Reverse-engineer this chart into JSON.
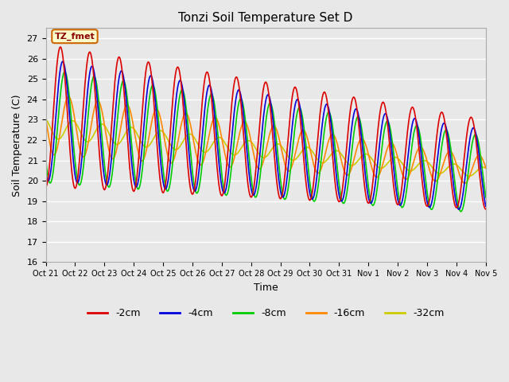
{
  "title": "Tonzi Soil Temperature Set D",
  "xlabel": "Time",
  "ylabel": "Soil Temperature (C)",
  "ylim": [
    16.0,
    27.5
  ],
  "yticks": [
    16.0,
    17.0,
    18.0,
    19.0,
    20.0,
    21.0,
    22.0,
    23.0,
    24.0,
    25.0,
    26.0,
    27.0
  ],
  "bg_color": "#e8e8e8",
  "series": {
    "-2cm": {
      "color": "#dd0000",
      "lw": 1.2
    },
    "-4cm": {
      "color": "#0000dd",
      "lw": 1.2
    },
    "-8cm": {
      "color": "#00cc00",
      "lw": 1.2
    },
    "-16cm": {
      "color": "#ff8800",
      "lw": 1.2
    },
    "-32cm": {
      "color": "#cccc00",
      "lw": 1.2
    }
  },
  "xtick_labels": [
    "Oct 21",
    "Oct 22",
    "Oct 23",
    "Oct 24",
    "Oct 25",
    "Oct 26",
    "Oct 27",
    "Oct 28",
    "Oct 29",
    "Oct 30",
    "Oct 31",
    "Nov 1",
    "Nov 2",
    "Nov 3",
    "Nov 4",
    "Nov 5"
  ],
  "legend_label": "TZ_fmet",
  "n_days": 15
}
